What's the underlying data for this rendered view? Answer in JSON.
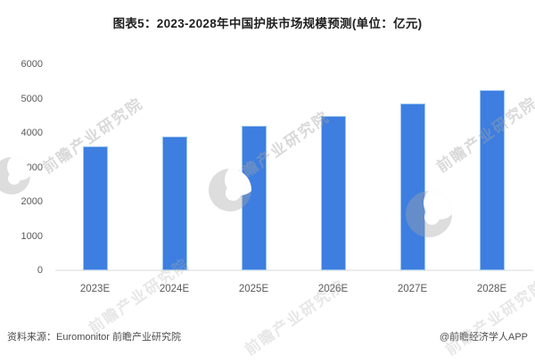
{
  "title": "图表5：2023-2028年中国护肤市场规模预测(单位：亿元)",
  "chart_data": {
    "type": "bar",
    "title": "图表5：2023-2028年中国护肤市场规模预测(单位：亿元)",
    "unit": "亿元",
    "categories": [
      "2023E",
      "2024E",
      "2025E",
      "2026E",
      "2027E",
      "2028E"
    ],
    "values": [
      3600,
      3900,
      4200,
      4500,
      4870,
      5250
    ],
    "xlabel": "",
    "ylabel": "",
    "ylim": [
      0,
      6000
    ],
    "yticks": [
      0,
      1000,
      2000,
      3000,
      4000,
      5000,
      6000
    ],
    "grid": false,
    "legend": false,
    "bar_color": "#3D7EE0",
    "bar_border_color": "#9EC6F0",
    "axis_label_color": "#595959",
    "axis_line_color": "#ECECEC"
  },
  "footer": {
    "source": "资料来源：Euromonitor 前瞻产业研究院",
    "credit": "@前瞻经济学人APP"
  },
  "watermark": {
    "text": "前瞻产业研究院",
    "color": "#A5A5A5",
    "logo": "qianzhan-logo"
  }
}
